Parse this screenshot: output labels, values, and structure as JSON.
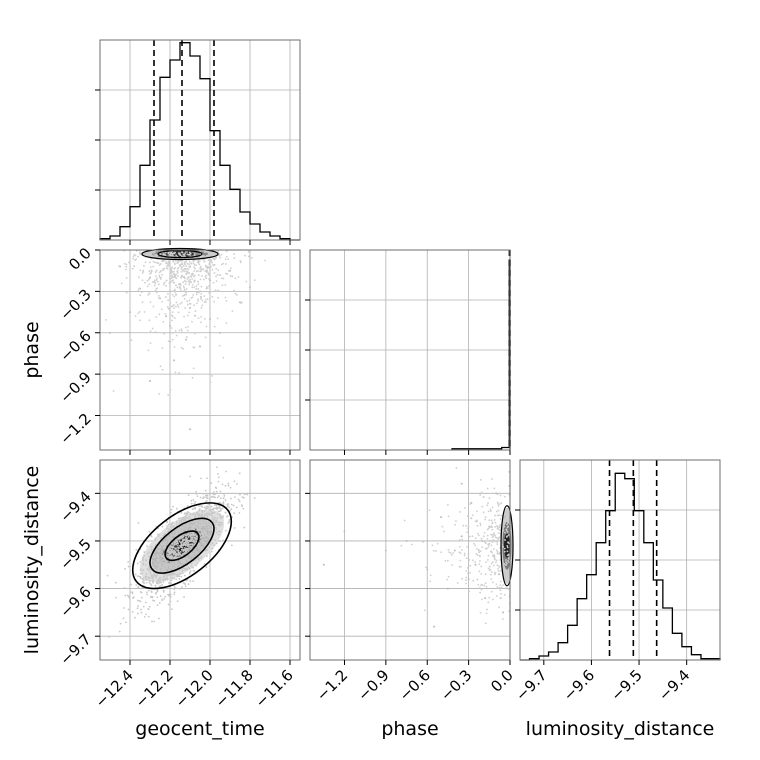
{
  "chart_data": {
    "type": "corner",
    "parameters": [
      "geocent_time",
      "phase",
      "luminosity_distance"
    ],
    "grid": true,
    "quantile_lines": "dashed",
    "panels": [
      {
        "id": "hist-geocent_time",
        "type": "bar",
        "parameter": "geocent_time",
        "xlim": [
          -12.55,
          -11.55
        ],
        "xticks": [
          "-12.4",
          "-12.2",
          "-12.0",
          "-11.8",
          "-11.6"
        ],
        "bin_edges": [
          -12.55,
          -12.5,
          -12.45,
          -12.4,
          -12.35,
          -12.3,
          -12.25,
          -12.2,
          -12.15,
          -12.1,
          -12.05,
          -12.0,
          -11.95,
          -11.9,
          -11.85,
          -11.8,
          -11.75,
          -11.7,
          -11.65,
          -11.6,
          -11.55
        ],
        "counts": [
          1,
          3,
          10,
          25,
          56,
          90,
          122,
          135,
          148,
          138,
          121,
          82,
          56,
          38,
          21,
          12,
          6,
          3,
          1,
          0
        ],
        "ylim": [
          0,
          150
        ],
        "quantiles": [
          -12.28,
          -12.14,
          -11.98
        ]
      },
      {
        "id": "hist-phase",
        "type": "bar",
        "parameter": "phase",
        "xlim": [
          -1.45,
          0.0
        ],
        "xticks": [
          "-1.2",
          "-0.9",
          "-0.6",
          "-0.3",
          "0.0"
        ],
        "bin_edges": [
          -0.42,
          -0.06,
          -0.005,
          0.0
        ],
        "counts": [
          1,
          2,
          152
        ],
        "ylim": [
          0,
          160
        ],
        "quantiles": [
          -0.004,
          -0.002,
          -0.0005
        ]
      },
      {
        "id": "hist-luminosity_distance",
        "type": "bar",
        "parameter": "luminosity_distance",
        "xlim": [
          -9.75,
          -9.33
        ],
        "xticks": [
          "-9.7",
          "-9.6",
          "-9.5",
          "-9.4"
        ],
        "bin_edges": [
          -9.75,
          -9.73,
          -9.71,
          -9.69,
          -9.67,
          -9.65,
          -9.63,
          -9.61,
          -9.59,
          -9.57,
          -9.55,
          -9.53,
          -9.51,
          -9.49,
          -9.47,
          -9.45,
          -9.43,
          -9.41,
          -9.39,
          -9.37,
          -9.35,
          -9.33
        ],
        "counts": [
          0,
          1,
          3,
          6,
          13,
          26,
          46,
          64,
          88,
          112,
          140,
          136,
          112,
          88,
          60,
          39,
          20,
          10,
          4,
          1,
          1
        ],
        "ylim": [
          0,
          150
        ],
        "quantiles": [
          -9.562,
          -9.512,
          -9.463
        ]
      },
      {
        "id": "scatter-geocent_time-phase",
        "type": "scatter",
        "x": "geocent_time",
        "y": "phase",
        "xlim": [
          -12.55,
          -11.55
        ],
        "ylim": [
          -1.45,
          0.0
        ],
        "yticks": [
          "0.0",
          "-0.3",
          "-0.6",
          "-0.9",
          "-1.2"
        ],
        "points": [
          [
            -12.2,
            -0.05
          ],
          [
            -12.1,
            -0.12
          ],
          [
            -12.3,
            -0.2
          ],
          [
            -12.15,
            -0.25
          ],
          [
            -12.05,
            -0.3
          ],
          [
            -12.25,
            -0.35
          ],
          [
            -12.1,
            -0.42
          ],
          [
            -12.0,
            -0.5
          ],
          [
            -12.2,
            -0.55
          ],
          [
            -11.95,
            -0.6
          ],
          [
            -12.35,
            -0.28
          ],
          [
            -12.4,
            -0.45
          ],
          [
            -11.9,
            -0.15
          ],
          [
            -12.12,
            -0.65
          ],
          [
            -12.18,
            -0.8
          ],
          [
            -12.05,
            -0.7
          ],
          [
            -11.85,
            -0.38
          ],
          [
            -12.45,
            -0.12
          ],
          [
            -12.3,
            -0.95
          ],
          [
            -12.1,
            -1.3
          ],
          [
            -12.0,
            -0.22
          ],
          [
            -12.22,
            -0.48
          ],
          [
            -11.8,
            -0.27
          ],
          [
            -12.5,
            -0.6
          ]
        ],
        "density_peak": [
          -12.15,
          -0.01
        ]
      },
      {
        "id": "scatter-geocent_time-luminosity_distance",
        "type": "scatter",
        "x": "geocent_time",
        "y": "luminosity_distance",
        "xlim": [
          -12.55,
          -11.55
        ],
        "ylim": [
          -9.75,
          -9.33
        ],
        "yticks": [
          "-9.4",
          "-9.5",
          "-9.6",
          "-9.7"
        ],
        "correlation": 0.75,
        "center": [
          -12.14,
          -9.51
        ],
        "spread": [
          0.11,
          0.055
        ],
        "contour_levels": 3
      },
      {
        "id": "scatter-phase-luminosity_distance",
        "type": "scatter",
        "x": "phase",
        "y": "luminosity_distance",
        "xlim": [
          -1.45,
          0.0
        ],
        "ylim": [
          -9.75,
          -9.33
        ],
        "points": [
          [
            -1.35,
            -9.55
          ],
          [
            -1.2,
            -9.48
          ],
          [
            -0.9,
            -9.52
          ],
          [
            -0.75,
            -9.5
          ],
          [
            -0.6,
            -9.56
          ],
          [
            -0.5,
            -9.45
          ],
          [
            -0.45,
            -9.6
          ],
          [
            -0.4,
            -9.52
          ],
          [
            -0.35,
            -9.49
          ],
          [
            -0.3,
            -9.58
          ],
          [
            -0.28,
            -9.42
          ],
          [
            -0.25,
            -9.55
          ],
          [
            -0.2,
            -9.5
          ],
          [
            -0.18,
            -9.62
          ],
          [
            -0.15,
            -9.47
          ],
          [
            -0.12,
            -9.53
          ],
          [
            -0.1,
            -9.4
          ],
          [
            -0.08,
            -9.57
          ],
          [
            -0.06,
            -9.51
          ],
          [
            -0.05,
            -9.65
          ],
          [
            -0.04,
            -9.45
          ],
          [
            -0.03,
            -9.54
          ],
          [
            -0.02,
            -9.49
          ],
          [
            -0.55,
            -9.68
          ],
          [
            -0.35,
            -9.38
          ]
        ],
        "density_peak": [
          -0.005,
          -9.51
        ]
      }
    ]
  }
}
